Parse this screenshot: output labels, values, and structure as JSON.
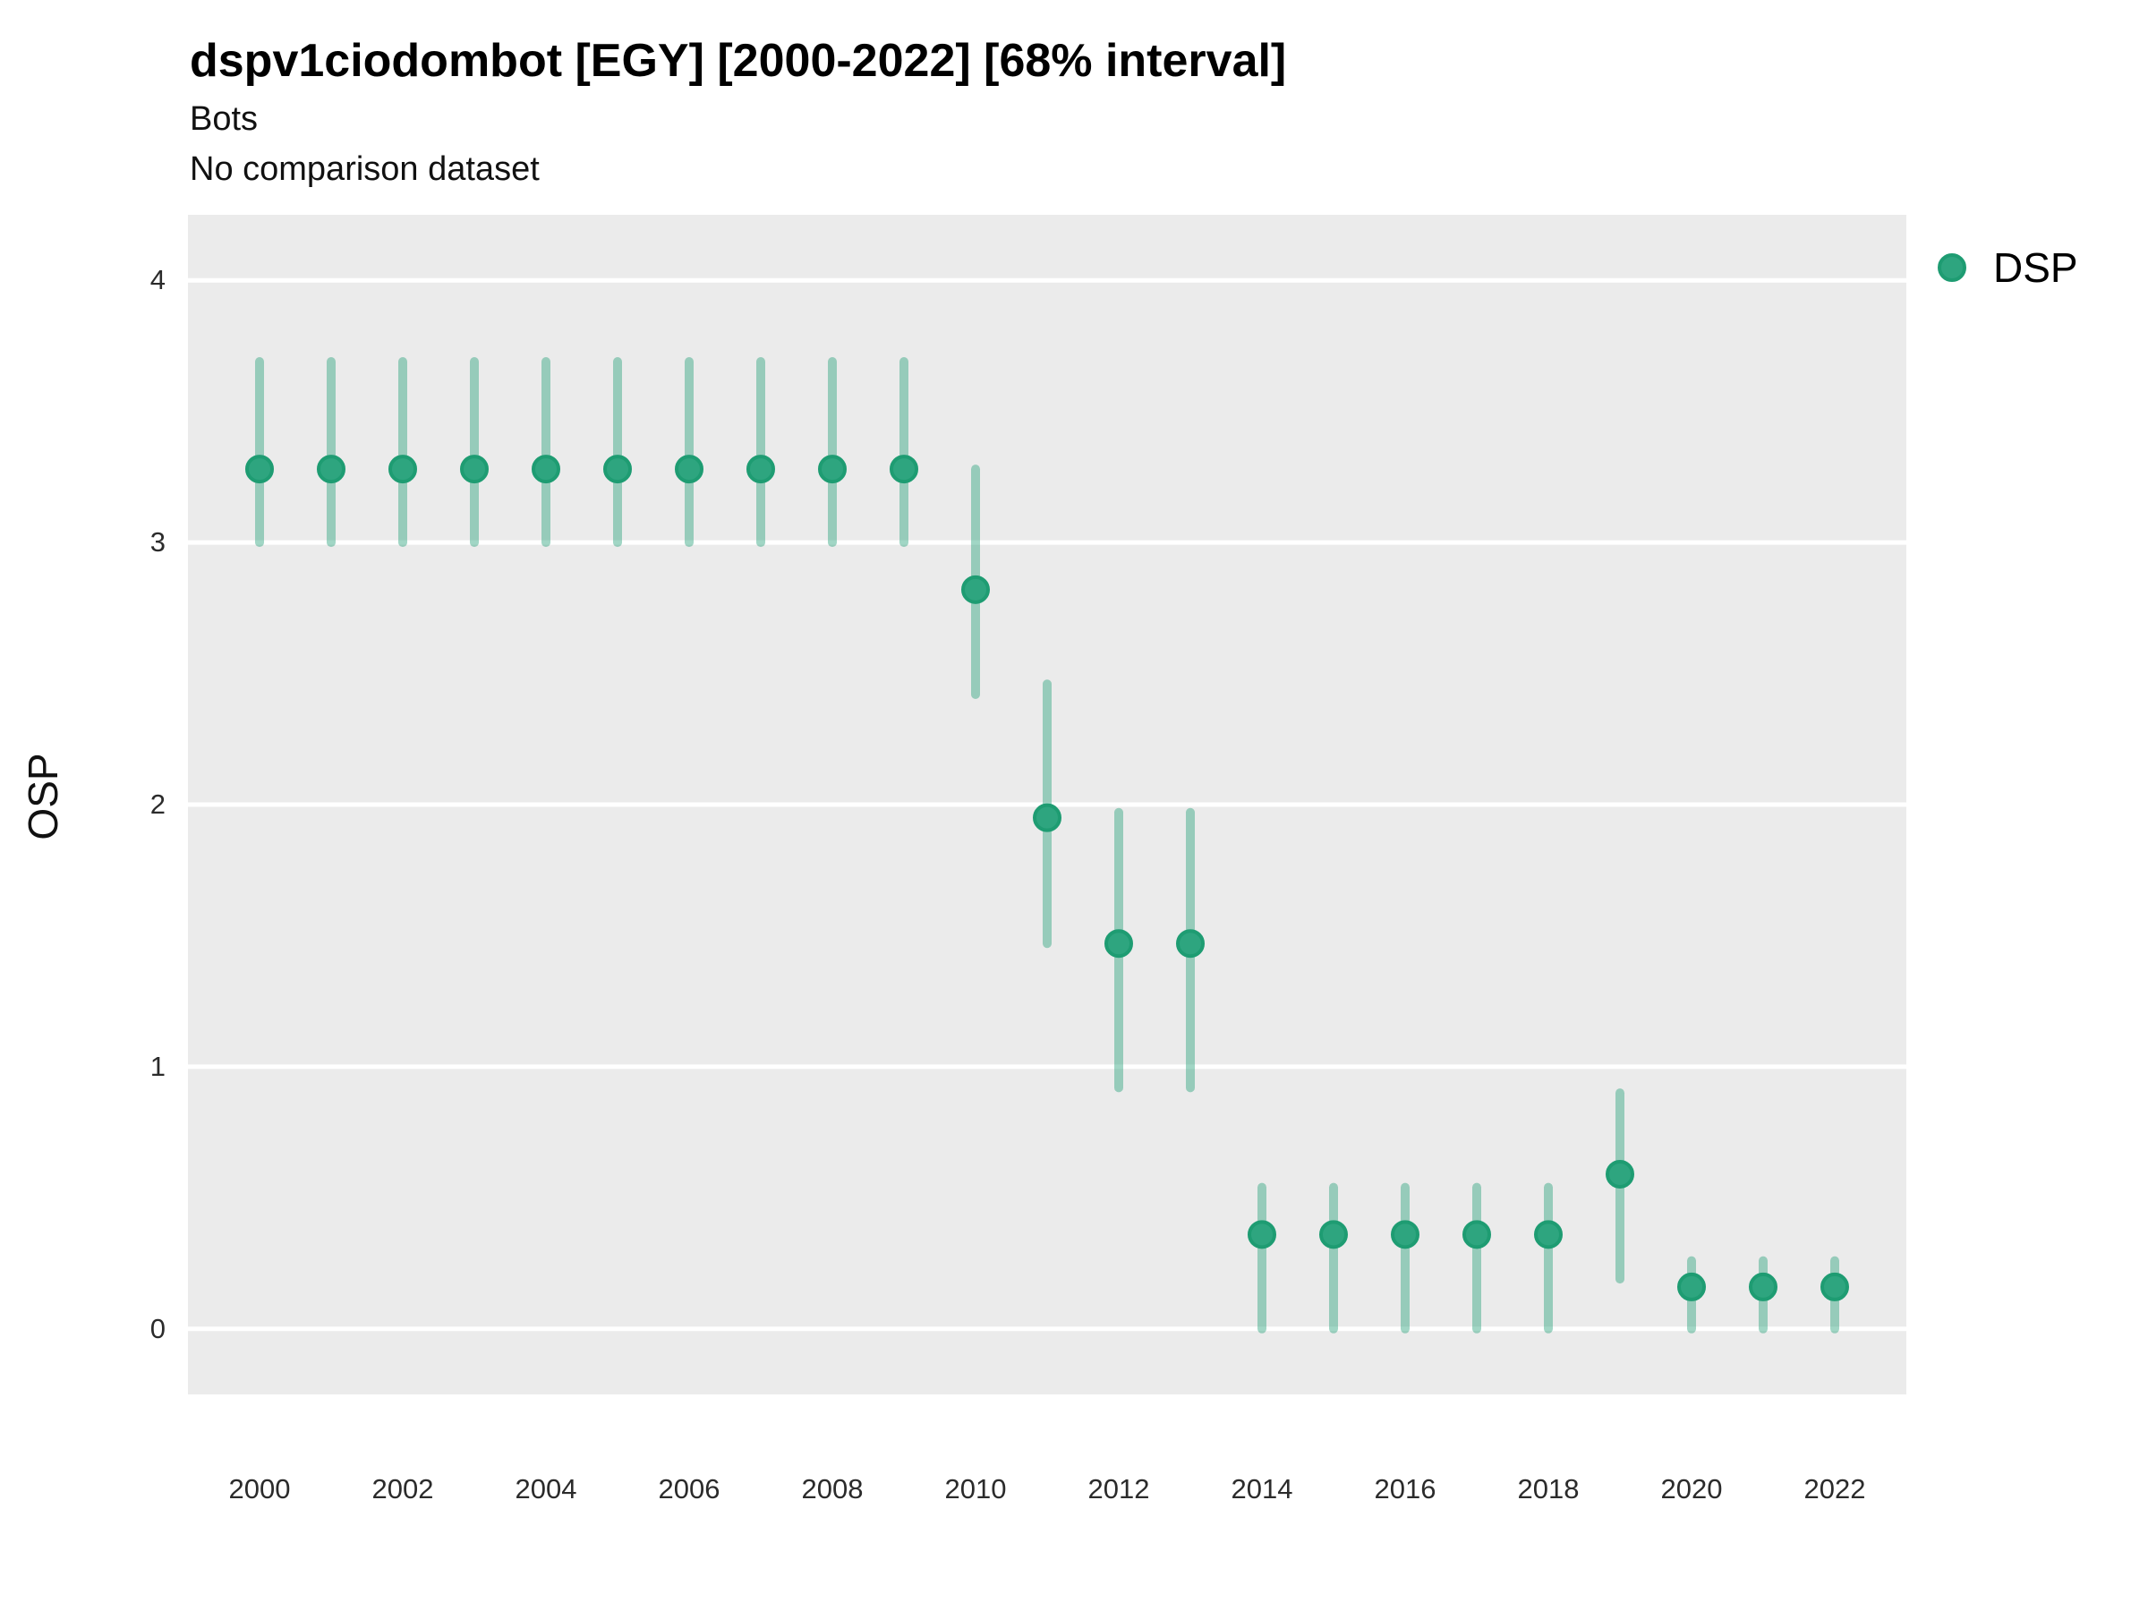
{
  "header": {
    "title": "dspv1ciodombot [EGY] [2000-2022] [68% interval]",
    "subtitle": "Bots",
    "comparison_note": "No comparison dataset"
  },
  "colors": {
    "point": "#2EA57F",
    "point_stroke": "#1E9C72",
    "interval_bar": "rgba(46,165,127,0.45)",
    "panel_background": "#EBEBEB",
    "gridline": "#FFFFFF",
    "tick_text": "#2B2B2B"
  },
  "chart_data": {
    "type": "scatter",
    "title": "dspv1ciodombot [EGY] [2000-2022] [68% interval]",
    "subtitle": "Bots",
    "note": "No comparison dataset",
    "xlabel": "",
    "ylabel": "OSP",
    "interval_level": "68%",
    "grid": "horizontal-major-only",
    "legend_position": "right",
    "x_ticks": [
      2000,
      2002,
      2004,
      2006,
      2008,
      2010,
      2012,
      2014,
      2016,
      2018,
      2020,
      2022
    ],
    "y_ticks": [
      0,
      1,
      2,
      3,
      4
    ],
    "xlim": [
      1999,
      2023
    ],
    "ylim": [
      -0.25,
      4.25
    ],
    "series": [
      {
        "name": "DSP",
        "points": [
          {
            "year": 2000,
            "value": 3.28,
            "lower": 3.0,
            "upper": 3.69
          },
          {
            "year": 2001,
            "value": 3.28,
            "lower": 3.0,
            "upper": 3.69
          },
          {
            "year": 2002,
            "value": 3.28,
            "lower": 3.0,
            "upper": 3.69
          },
          {
            "year": 2003,
            "value": 3.28,
            "lower": 3.0,
            "upper": 3.69
          },
          {
            "year": 2004,
            "value": 3.28,
            "lower": 3.0,
            "upper": 3.69
          },
          {
            "year": 2005,
            "value": 3.28,
            "lower": 3.0,
            "upper": 3.69
          },
          {
            "year": 2006,
            "value": 3.28,
            "lower": 3.0,
            "upper": 3.69
          },
          {
            "year": 2007,
            "value": 3.28,
            "lower": 3.0,
            "upper": 3.69
          },
          {
            "year": 2008,
            "value": 3.28,
            "lower": 3.0,
            "upper": 3.69
          },
          {
            "year": 2009,
            "value": 3.28,
            "lower": 3.0,
            "upper": 3.69
          },
          {
            "year": 2010,
            "value": 2.82,
            "lower": 2.42,
            "upper": 3.28
          },
          {
            "year": 2011,
            "value": 1.95,
            "lower": 1.47,
            "upper": 2.46
          },
          {
            "year": 2012,
            "value": 1.47,
            "lower": 0.92,
            "upper": 1.97
          },
          {
            "year": 2013,
            "value": 1.47,
            "lower": 0.92,
            "upper": 1.97
          },
          {
            "year": 2014,
            "value": 0.36,
            "lower": 0.0,
            "upper": 0.54
          },
          {
            "year": 2015,
            "value": 0.36,
            "lower": 0.0,
            "upper": 0.54
          },
          {
            "year": 2016,
            "value": 0.36,
            "lower": 0.0,
            "upper": 0.54
          },
          {
            "year": 2017,
            "value": 0.36,
            "lower": 0.0,
            "upper": 0.54
          },
          {
            "year": 2018,
            "value": 0.36,
            "lower": 0.0,
            "upper": 0.54
          },
          {
            "year": 2019,
            "value": 0.59,
            "lower": 0.19,
            "upper": 0.9
          },
          {
            "year": 2020,
            "value": 0.16,
            "lower": 0.0,
            "upper": 0.26
          },
          {
            "year": 2021,
            "value": 0.16,
            "lower": 0.0,
            "upper": 0.26
          },
          {
            "year": 2022,
            "value": 0.16,
            "lower": 0.0,
            "upper": 0.26
          }
        ]
      }
    ]
  }
}
